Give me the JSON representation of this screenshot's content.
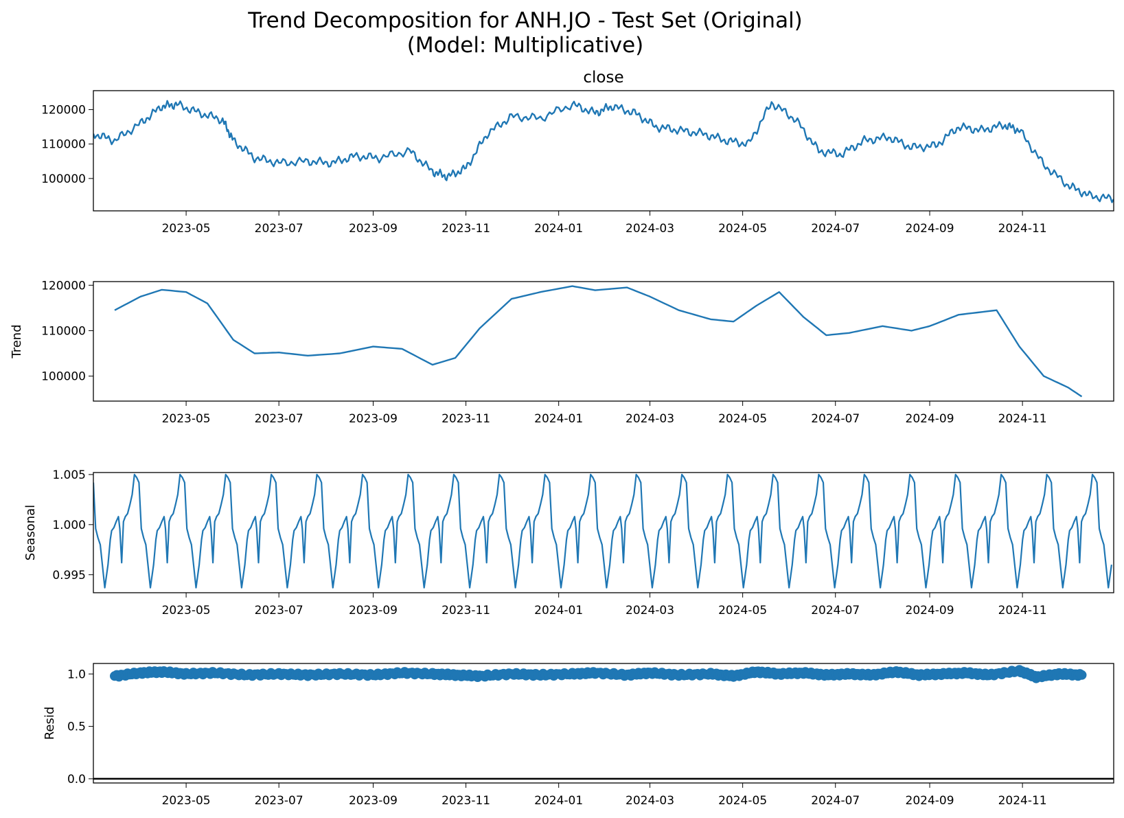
{
  "figure": {
    "title_line1": "Trend Decomposition for ANH.JO - Test Set (Original)",
    "title_line2": "(Model: Multiplicative)"
  },
  "colors": {
    "series": "#1f77b4",
    "axis": "#000000",
    "background": "#ffffff"
  },
  "chart_data": [
    {
      "type": "line",
      "title": "close",
      "ylabel": "",
      "x_range": [
        "2023-03-01",
        "2024-12-31"
      ],
      "ylim": [
        90600,
        125500
      ],
      "y_ticks": [
        100000,
        110000,
        120000
      ],
      "x_ticks": [
        "2023-05",
        "2023-07",
        "2023-09",
        "2023-11",
        "2024-01",
        "2024-03",
        "2024-05",
        "2024-07",
        "2024-09",
        "2024-11"
      ],
      "grid": false,
      "x": [
        "2023-03-01",
        "2023-03-15",
        "2023-04-01",
        "2023-04-15",
        "2023-04-25",
        "2023-05-10",
        "2023-05-25",
        "2023-06-01",
        "2023-06-15",
        "2023-07-01",
        "2023-07-20",
        "2023-08-05",
        "2023-08-20",
        "2023-09-05",
        "2023-09-25",
        "2023-10-10",
        "2023-10-20",
        "2023-11-01",
        "2023-11-15",
        "2023-12-01",
        "2023-12-20",
        "2024-01-10",
        "2024-01-25",
        "2024-02-05",
        "2024-02-20",
        "2024-03-05",
        "2024-03-20",
        "2024-04-05",
        "2024-04-20",
        "2024-05-05",
        "2024-05-20",
        "2024-06-05",
        "2024-06-20",
        "2024-07-05",
        "2024-07-20",
        "2024-08-05",
        "2024-08-20",
        "2024-09-05",
        "2024-09-20",
        "2024-10-05",
        "2024-10-20",
        "2024-10-30",
        "2024-11-15",
        "2024-12-01",
        "2024-12-15",
        "2024-12-31"
      ],
      "values": [
        113000,
        111000,
        116000,
        121000,
        121500,
        119000,
        117000,
        111000,
        106000,
        104500,
        105000,
        104500,
        106500,
        106000,
        108000,
        102000,
        100500,
        103000,
        113000,
        118000,
        117500,
        121500,
        119000,
        121000,
        119000,
        115000,
        114000,
        113000,
        111000,
        110000,
        122000,
        117000,
        108000,
        107000,
        111000,
        112000,
        109000,
        109500,
        115000,
        114000,
        115500,
        114000,
        104000,
        98000,
        95000,
        94000
      ]
    },
    {
      "type": "line",
      "title": "",
      "ylabel": "Trend",
      "x_range": [
        "2023-03-01",
        "2024-12-31"
      ],
      "ylim": [
        94500,
        120800
      ],
      "y_ticks": [
        100000,
        110000,
        120000
      ],
      "x_ticks": [
        "2023-05",
        "2023-07",
        "2023-09",
        "2023-11",
        "2024-01",
        "2024-03",
        "2024-05",
        "2024-07",
        "2024-09",
        "2024-11"
      ],
      "grid": false,
      "x": [
        "2023-03-15",
        "2023-04-01",
        "2023-04-15",
        "2023-05-01",
        "2023-05-15",
        "2023-06-01",
        "2023-06-15",
        "2023-07-01",
        "2023-07-20",
        "2023-08-10",
        "2023-09-01",
        "2023-09-20",
        "2023-10-10",
        "2023-10-25",
        "2023-11-10",
        "2023-12-01",
        "2023-12-20",
        "2024-01-10",
        "2024-01-25",
        "2024-02-15",
        "2024-03-01",
        "2024-03-20",
        "2024-04-10",
        "2024-04-25",
        "2024-05-10",
        "2024-05-25",
        "2024-06-10",
        "2024-06-25",
        "2024-07-10",
        "2024-08-01",
        "2024-08-20",
        "2024-09-01",
        "2024-09-20",
        "2024-10-15",
        "2024-10-30",
        "2024-11-15",
        "2024-12-01",
        "2024-12-10"
      ],
      "values": [
        114500,
        117500,
        119000,
        118500,
        116000,
        108000,
        105000,
        105200,
        104500,
        105000,
        106500,
        106000,
        102500,
        104000,
        110500,
        117000,
        118500,
        119800,
        118900,
        119500,
        117500,
        114500,
        112500,
        112000,
        115500,
        118500,
        113000,
        109000,
        109500,
        111000,
        110000,
        111000,
        113500,
        114500,
        106500,
        100000,
        97500,
        95500
      ]
    },
    {
      "type": "line",
      "title": "",
      "ylabel": "Seasonal",
      "x_range": [
        "2023-03-01",
        "2024-12-31"
      ],
      "ylim": [
        0.9932,
        1.0052
      ],
      "y_ticks": [
        0.995,
        1.0,
        1.005
      ],
      "y_tick_labels": [
        "0.995",
        "1.000",
        "1.005"
      ],
      "x_ticks": [
        "2023-05",
        "2023-07",
        "2023-09",
        "2023-11",
        "2024-01",
        "2024-03",
        "2024-05",
        "2024-07",
        "2024-09",
        "2024-11"
      ],
      "grid": false,
      "period_days": 30,
      "start": "2023-03-01",
      "end": "2024-12-31",
      "cycle_values": [
        1.005,
        1.0047,
        1.0042,
        0.9996,
        0.9987,
        0.998,
        0.9937,
        0.996,
        0.9985,
        0.9994,
        0.9997,
        1.0003,
        1.0008,
        0.9996,
        0.9962,
        1.0003,
        1.0008,
        1.0011,
        1.002,
        1.003,
        1.005
      ],
      "cycle_fractions": [
        0,
        0.05,
        0.1,
        0.15,
        0.2,
        0.25,
        0.35,
        0.42,
        0.47,
        0.5,
        0.55,
        0.6,
        0.65,
        0.68,
        0.72,
        0.76,
        0.8,
        0.85,
        0.9,
        0.95,
        1.0
      ]
    },
    {
      "type": "scatter",
      "title": "",
      "ylabel": "Resid",
      "x_range": [
        "2023-03-01",
        "2024-12-31"
      ],
      "ylim": [
        -0.04,
        1.1
      ],
      "y_ticks": [
        0.0,
        0.5,
        1.0
      ],
      "y_tick_labels": [
        "0.0",
        "0.5",
        "1.0"
      ],
      "x_ticks": [
        "2023-05",
        "2023-07",
        "2023-09",
        "2023-11",
        "2024-01",
        "2024-03",
        "2024-05",
        "2024-07",
        "2024-09",
        "2024-11"
      ],
      "grid": false,
      "reference_line": 0.0,
      "x": [
        "2023-03-15",
        "2023-04-01",
        "2023-04-15",
        "2023-05-01",
        "2023-05-20",
        "2023-06-10",
        "2023-07-01",
        "2023-07-20",
        "2023-08-10",
        "2023-09-01",
        "2023-09-20",
        "2023-10-10",
        "2023-10-25",
        "2023-11-10",
        "2023-12-01",
        "2023-12-20",
        "2024-01-10",
        "2024-01-25",
        "2024-02-15",
        "2024-03-01",
        "2024-03-20",
        "2024-04-10",
        "2024-04-25",
        "2024-05-10",
        "2024-05-25",
        "2024-06-10",
        "2024-06-25",
        "2024-07-10",
        "2024-07-25",
        "2024-08-10",
        "2024-08-25",
        "2024-09-10",
        "2024-09-25",
        "2024-10-10",
        "2024-10-30",
        "2024-11-10",
        "2024-11-25",
        "2024-12-10"
      ],
      "values": [
        0.98,
        1.01,
        1.02,
        1.0,
        1.01,
        0.99,
        1.0,
        0.99,
        1.0,
        0.99,
        1.01,
        1.0,
        0.99,
        0.98,
        1.0,
        0.99,
        1.0,
        1.01,
        0.99,
        1.01,
        0.99,
        1.0,
        0.98,
        1.02,
        1.0,
        1.01,
        0.99,
        1.0,
        0.99,
        1.02,
        0.99,
        1.0,
        1.01,
        0.99,
        1.03,
        0.97,
        1.0,
        0.99
      ]
    }
  ]
}
